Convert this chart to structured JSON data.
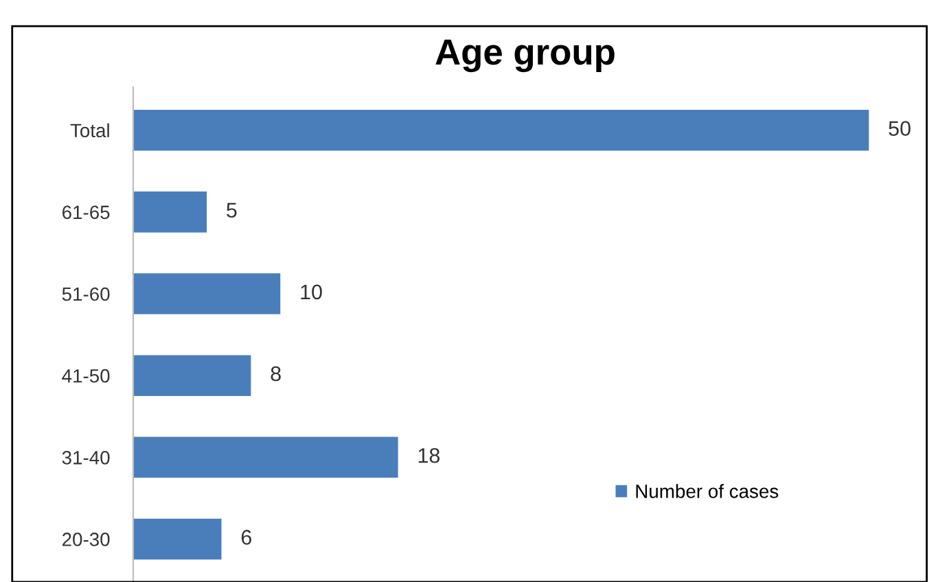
{
  "chart_data": {
    "type": "bar",
    "orientation": "horizontal",
    "title": "Age group",
    "categories": [
      "Total",
      "61-65",
      "51-60",
      "41-50",
      "31-40",
      "20-30"
    ],
    "series": [
      {
        "name": "Number of cases",
        "color": "#4a7ebb",
        "values": [
          50,
          5,
          10,
          8,
          18,
          6
        ]
      }
    ],
    "data_labels": true,
    "legend": "right",
    "grid": false
  }
}
